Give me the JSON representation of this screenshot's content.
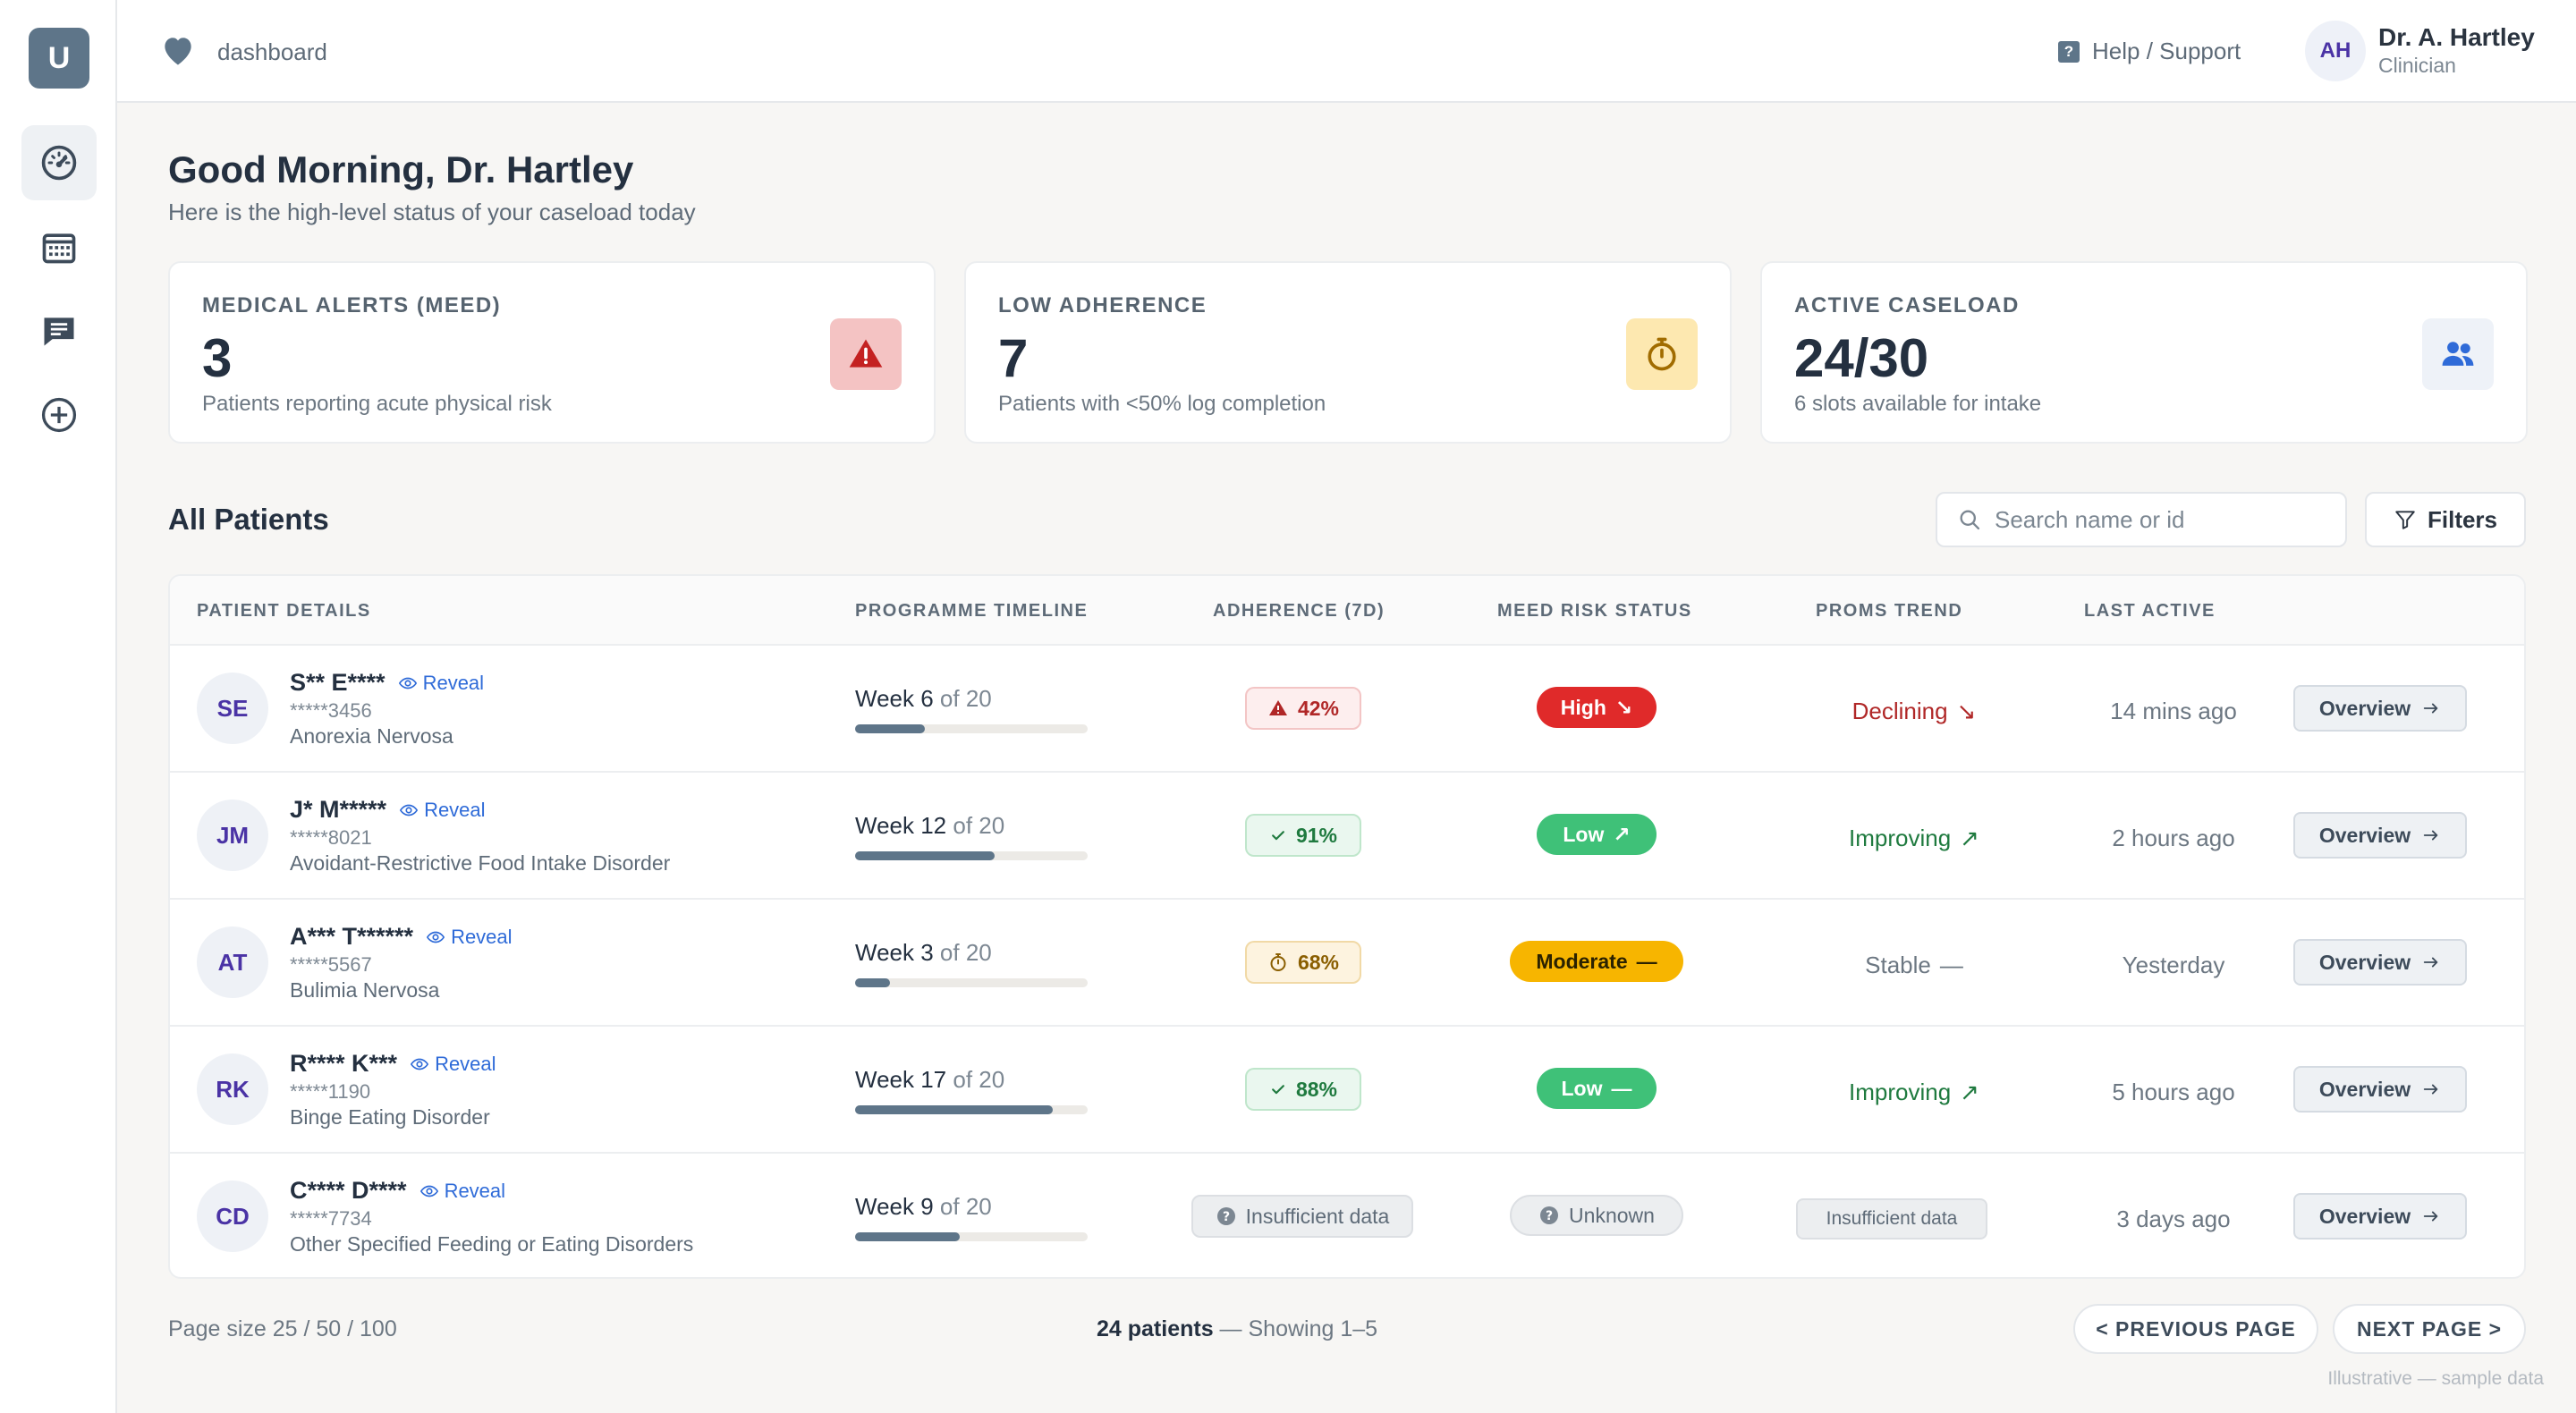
{
  "rail": {
    "avatar_letter": "U",
    "items": [
      {
        "icon": "gauge-icon",
        "active": true
      },
      {
        "icon": "calendar-icon",
        "active": false
      },
      {
        "icon": "message-icon",
        "active": false
      },
      {
        "icon": "plus-circle-icon",
        "active": false
      }
    ]
  },
  "header": {
    "crumb_icon": "heart-icon",
    "crumb": "dashboard",
    "help_icon_glyph": "?",
    "help": "Help / Support",
    "user_initials": "AH",
    "user_name": "Dr. A. Hartley",
    "user_role": "Clinician"
  },
  "intro": {
    "greeting": "Good Morning, Dr. Hartley",
    "subtitle": "Here is the high-level status of your caseload today"
  },
  "cards": [
    {
      "label": "MEDICAL ALERTS (MEED)",
      "value": "3",
      "note": "Patients reporting acute physical risk",
      "icon": "warning-icon",
      "icon_bg": "#f4c3c3",
      "icon_color": "#c42121"
    },
    {
      "label": "LOW ADHERENCE",
      "value": "7",
      "note": "Patients with <50% log completion",
      "icon": "stopwatch-icon",
      "icon_bg": "#fde8b0",
      "icon_color": "#a16c00"
    },
    {
      "label": "ACTIVE CASELOAD",
      "value": "24/30",
      "note": "6 slots available for intake",
      "icon": "people-icon",
      "icon_bg": "#eef2f8",
      "icon_color": "#2f6bd8"
    }
  ],
  "patients_section": {
    "title": "All Patients",
    "search_placeholder": "Search name or id",
    "filters_label": "Filters"
  },
  "table": {
    "headers": [
      "PATIENT DETAILS",
      "PROGRAMME TIMELINE",
      "ADHERENCE (7D)",
      "MEED RISK STATUS",
      "PROMS TREND",
      "LAST ACTIVE"
    ],
    "reveal_label": "Reveal",
    "overview_label": "Overview",
    "rows": [
      {
        "initials": "SE",
        "name": "S** E****",
        "id": "*****3456",
        "diagnosis": "Anorexia Nervosa",
        "week": "Week 6",
        "of": "of 20",
        "progress": 0.3,
        "adherence": "42%",
        "adherence_level": "red",
        "adherence_icon": "warning-icon",
        "risk": "High",
        "risk_level": "high",
        "risk_arrow": "↘",
        "trend": "Declining",
        "trend_arrow": "↘",
        "trend_level": "bad",
        "last_active": "14 mins ago"
      },
      {
        "initials": "JM",
        "name": "J* M*****",
        "id": "*****8021",
        "diagnosis": "Avoidant-Restrictive Food Intake Disorder",
        "week": "Week 12",
        "of": "of 20",
        "progress": 0.6,
        "adherence": "91%",
        "adherence_level": "green",
        "adherence_icon": "check-icon",
        "risk": "Low",
        "risk_level": "low",
        "risk_arrow": "↗",
        "trend": "Improving",
        "trend_arrow": "↗",
        "trend_level": "good",
        "last_active": "2 hours ago"
      },
      {
        "initials": "AT",
        "name": "A*** T******",
        "id": "*****5567",
        "diagnosis": "Bulimia Nervosa",
        "week": "Week 3",
        "of": "of 20",
        "progress": 0.15,
        "adherence": "68%",
        "adherence_level": "yellow",
        "adherence_icon": "stopwatch-icon",
        "risk": "Moderate",
        "risk_level": "mod",
        "risk_arrow": "—",
        "trend": "Stable",
        "trend_arrow": "—",
        "trend_level": "flat",
        "last_active": "Yesterday"
      },
      {
        "initials": "RK",
        "name": "R**** K***",
        "id": "*****1190",
        "diagnosis": "Binge Eating Disorder",
        "week": "Week 17",
        "of": "of 20",
        "progress": 0.85,
        "adherence": "88%",
        "adherence_level": "green",
        "adherence_icon": "check-icon",
        "risk": "Low",
        "risk_level": "low",
        "risk_arrow": "—",
        "trend": "Improving",
        "trend_arrow": "↗",
        "trend_level": "good",
        "last_active": "5 hours ago"
      },
      {
        "initials": "CD",
        "name": "C**** D****",
        "id": "*****7734",
        "diagnosis": "Other Specified Feeding or Eating Disorders",
        "week": "Week 9",
        "of": "of 20",
        "progress": 0.45,
        "adherence": "Insufficient data",
        "adherence_level": "gray",
        "adherence_icon": "question-icon",
        "risk": "Unknown",
        "risk_level": "unk",
        "risk_arrow": "",
        "trend": "Insufficient data",
        "trend_arrow": "",
        "trend_level": "box",
        "last_active": "3 days ago"
      }
    ]
  },
  "footer": {
    "page_size": "Page size 25 / 50 / 100",
    "count": "24 patients",
    "showing": " — Showing 1–5",
    "prev": "< PREVIOUS PAGE",
    "next": "NEXT PAGE >",
    "watermark": "Illustrative — sample data"
  }
}
